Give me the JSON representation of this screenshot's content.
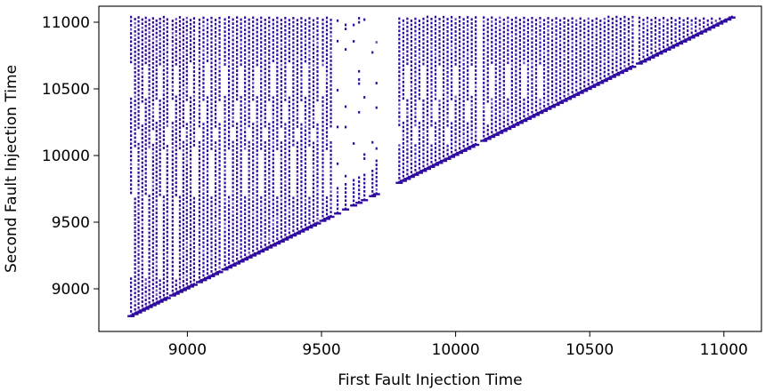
{
  "chart_data": {
    "type": "scatter",
    "title": "",
    "xlabel": "First Fault Injection Time",
    "ylabel": "Second Fault Injection Time",
    "xlim": [
      8670,
      11140
    ],
    "ylim": [
      8680,
      11120
    ],
    "xticks": [
      9000,
      9500,
      10000,
      10500,
      11000
    ],
    "yticks": [
      9000,
      9500,
      10000,
      10500,
      11000
    ],
    "xtick_labels": [
      "9000",
      "9500",
      "10000",
      "10500",
      "11000"
    ],
    "ytick_labels": [
      "9000",
      "9500",
      "10000",
      "10500",
      "11000"
    ],
    "grid": false,
    "legend": "none",
    "marker_color": "#2e0a9e",
    "marker_alpha_color": "#6a4bc4",
    "domain_x": [
      8780,
      11030
    ],
    "domain_y_max": 11040,
    "constraint": "y > x",
    "columns_x": [
      8790,
      8805,
      8818,
      8832,
      8845,
      8858,
      8872,
      8885,
      8898,
      8912,
      8925,
      8945,
      8958,
      8972,
      8985,
      8998,
      9012,
      9025,
      9045,
      9060,
      9075,
      9090,
      9105,
      9120,
      9140,
      9155,
      9170,
      9185,
      9200,
      9215,
      9230,
      9245,
      9260,
      9275,
      9290,
      9305,
      9320,
      9335,
      9350,
      9365,
      9380,
      9395,
      9410,
      9425,
      9440,
      9455,
      9470,
      9485,
      9505,
      9520,
      9535,
      9560,
      9590,
      9620,
      9640,
      9660,
      9690,
      9705,
      9790,
      9805,
      9820,
      9835,
      9850,
      9865,
      9880,
      9895,
      9910,
      9925,
      9940,
      9955,
      9970,
      9985,
      10000,
      10015,
      10030,
      10045,
      10060,
      10075,
      10105,
      10120,
      10135,
      10150,
      10165,
      10180,
      10195,
      10210,
      10225,
      10240,
      10255,
      10270,
      10285,
      10300,
      10315,
      10330,
      10345,
      10360,
      10375,
      10390,
      10405,
      10420,
      10435,
      10450,
      10465,
      10480,
      10495,
      10510,
      10525,
      10540,
      10555,
      10570,
      10585,
      10600,
      10615,
      10630,
      10645,
      10660,
      10685,
      10700,
      10715,
      10730,
      10745,
      10760,
      10775,
      10790,
      10805,
      10820,
      10835,
      10850,
      10865,
      10880,
      10895,
      10910,
      10925,
      10940,
      10955,
      10970,
      10985,
      11000,
      11015,
      11030
    ],
    "gaps_y": [
      [
        9090,
        9700
      ],
      [
        9700,
        10050
      ],
      [
        10100,
        10200
      ],
      [
        10250,
        10400
      ],
      [
        10440,
        10680
      ]
    ]
  }
}
